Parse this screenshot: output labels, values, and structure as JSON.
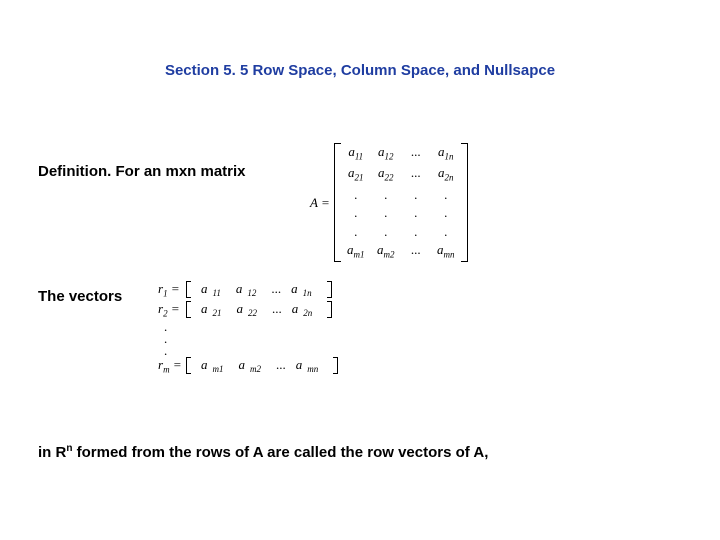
{
  "title": {
    "text": "Section 5. 5 Row Space, Column Space, and Nullsapce",
    "color": "#1f3da1",
    "fontsize": 15,
    "fontweight": "bold"
  },
  "definition_label": "Definition. For an mxn matrix",
  "matrix": {
    "lhs": "A =",
    "rows": [
      [
        "a",
        "11",
        "a",
        "12",
        "...",
        "a",
        "1n"
      ],
      [
        "a",
        "21",
        "a",
        "22",
        "...",
        "a",
        "2n"
      ],
      [
        ".",
        "",
        ".",
        "",
        ".",
        ".",
        ""
      ],
      [
        ".",
        "",
        ".",
        "",
        ".",
        ".",
        ""
      ],
      [
        ".",
        "",
        ".",
        "",
        ".",
        ".",
        ""
      ],
      [
        "a",
        "m1",
        "a",
        "m2",
        "...",
        "a",
        "mn"
      ]
    ]
  },
  "vectors_label": "The vectors",
  "row_vectors": {
    "lines": [
      {
        "label_base": "r",
        "label_sub": "1",
        "cells": [
          "a11",
          "a12",
          "...",
          "a1n"
        ]
      },
      {
        "label_base": "r",
        "label_sub": "2",
        "cells": [
          "a21",
          "a22",
          "...",
          "a2n"
        ]
      }
    ],
    "dots": [
      ".",
      ".",
      "."
    ],
    "last": {
      "label_base": "r",
      "label_sub": "m",
      "cells": [
        "am1",
        "am2",
        "...",
        "amn"
      ]
    }
  },
  "closing": {
    "pre": "in R",
    "sup": "n",
    "post": " formed from the rows of A are called the row vectors of A,"
  },
  "colors": {
    "background": "#ffffff",
    "text": "#000000",
    "title": "#1f3da1"
  }
}
